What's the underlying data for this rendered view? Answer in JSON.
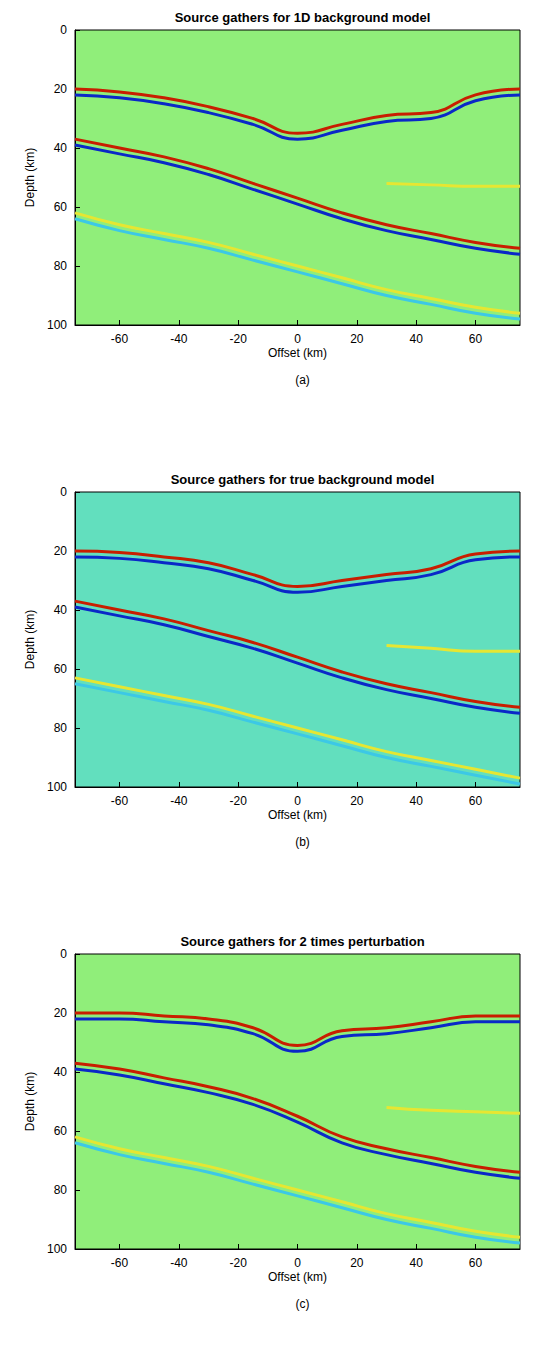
{
  "chart_data": [
    {
      "type": "line",
      "title": "Source gathers for 1D background model",
      "caption": "(a)",
      "x_label": "Offset (km)",
      "y_label": "Depth (km)",
      "x": [
        -75,
        -60,
        -45,
        -30,
        -15,
        0,
        15,
        30,
        45,
        60,
        75
      ],
      "xlim": [
        -75,
        75
      ],
      "xticks": [
        -60,
        -40,
        -20,
        0,
        20,
        40,
        60
      ],
      "ylim": [
        0,
        100
      ],
      "yticks": [
        0,
        20,
        40,
        60,
        80,
        100
      ],
      "series": [
        {
          "color": "#c81e00",
          "values": [
            20,
            21,
            23,
            26,
            30,
            35,
            32,
            29,
            28,
            22,
            20
          ]
        },
        {
          "color": "#0a28c8",
          "values": [
            22,
            23,
            25,
            28,
            32,
            37,
            34,
            31,
            30,
            24,
            22
          ]
        },
        {
          "color": "#c81e00",
          "values": [
            37,
            40,
            43,
            47,
            52,
            57,
            62,
            66,
            69,
            72,
            74
          ]
        },
        {
          "color": "#0a28c8",
          "values": [
            39,
            42,
            45,
            49,
            54,
            59,
            64,
            68,
            71,
            74,
            76
          ]
        },
        {
          "color": "#e6e632",
          "values": [
            null,
            null,
            null,
            null,
            null,
            null,
            null,
            52,
            52.5,
            53,
            53
          ]
        },
        {
          "color": "#e6e632",
          "values": [
            62,
            66,
            69,
            72,
            76,
            80,
            84,
            88,
            91,
            94,
            96
          ]
        },
        {
          "color": "#3cc8e6",
          "values": [
            64,
            68,
            71,
            74,
            78,
            82,
            86,
            90,
            93,
            96,
            98
          ]
        }
      ]
    },
    {
      "type": "line",
      "title": "Source gathers for true background model",
      "caption": "(b)",
      "x_label": "Offset (km)",
      "y_label": "Depth (km)",
      "x": [
        -75,
        -60,
        -45,
        -30,
        -15,
        0,
        15,
        30,
        45,
        60,
        75
      ],
      "xlim": [
        -75,
        75
      ],
      "xticks": [
        -60,
        -40,
        -20,
        0,
        20,
        40,
        60
      ],
      "ylim": [
        0,
        100
      ],
      "yticks": [
        0,
        20,
        40,
        60,
        80,
        100
      ],
      "series": [
        {
          "color": "#c81e00",
          "values": [
            20,
            20.5,
            22,
            24,
            28,
            32,
            30,
            28,
            26,
            21,
            20
          ]
        },
        {
          "color": "#0a28c8",
          "values": [
            22,
            22.5,
            24,
            26,
            30,
            34,
            32,
            30,
            28,
            23,
            22
          ]
        },
        {
          "color": "#c81e00",
          "values": [
            37,
            40,
            43,
            47,
            51,
            56,
            61,
            65,
            68,
            71,
            73
          ]
        },
        {
          "color": "#0a28c8",
          "values": [
            39,
            42,
            45,
            49,
            53,
            58,
            63,
            67,
            70,
            73,
            75
          ]
        },
        {
          "color": "#e6e632",
          "values": [
            null,
            null,
            null,
            null,
            null,
            null,
            null,
            52,
            53,
            54,
            54
          ]
        },
        {
          "color": "#e6e632",
          "values": [
            63,
            66,
            69,
            72,
            76,
            80,
            84,
            88,
            91,
            94,
            97
          ]
        },
        {
          "color": "#3cc8e6",
          "values": [
            65,
            68,
            71,
            74,
            78,
            82,
            86,
            90,
            93,
            96,
            99
          ]
        }
      ]
    },
    {
      "type": "line",
      "title": "Source gathers for 2 times perturbation",
      "caption": "(c)",
      "x_label": "Offset (km)",
      "y_label": "Depth (km)",
      "x": [
        -75,
        -60,
        -45,
        -30,
        -15,
        0,
        15,
        30,
        45,
        60,
        75
      ],
      "xlim": [
        -75,
        75
      ],
      "xticks": [
        -60,
        -40,
        -20,
        0,
        20,
        40,
        60
      ],
      "ylim": [
        0,
        100
      ],
      "yticks": [
        0,
        20,
        40,
        60,
        80,
        100
      ],
      "series": [
        {
          "color": "#c81e00",
          "values": [
            20,
            20,
            21,
            22,
            25,
            31,
            26,
            25,
            23,
            21,
            21
          ]
        },
        {
          "color": "#0a28c8",
          "values": [
            22,
            22,
            23,
            24,
            27,
            33,
            28,
            27,
            25,
            23,
            23
          ]
        },
        {
          "color": "#c81e00",
          "values": [
            37,
            39,
            42,
            45,
            49,
            55,
            62,
            66,
            69,
            72,
            74
          ]
        },
        {
          "color": "#0a28c8",
          "values": [
            39,
            41,
            44,
            47,
            51,
            57,
            64,
            68,
            71,
            74,
            76
          ]
        },
        {
          "color": "#e6e632",
          "values": [
            null,
            null,
            null,
            null,
            null,
            null,
            null,
            52,
            53,
            53.5,
            54
          ]
        },
        {
          "color": "#e6e632",
          "values": [
            62,
            66,
            69,
            72,
            76,
            80,
            84,
            88,
            91,
            94,
            96
          ]
        },
        {
          "color": "#3cc8e6",
          "values": [
            64,
            68,
            71,
            74,
            78,
            82,
            86,
            90,
            93,
            96,
            98
          ]
        }
      ]
    }
  ]
}
